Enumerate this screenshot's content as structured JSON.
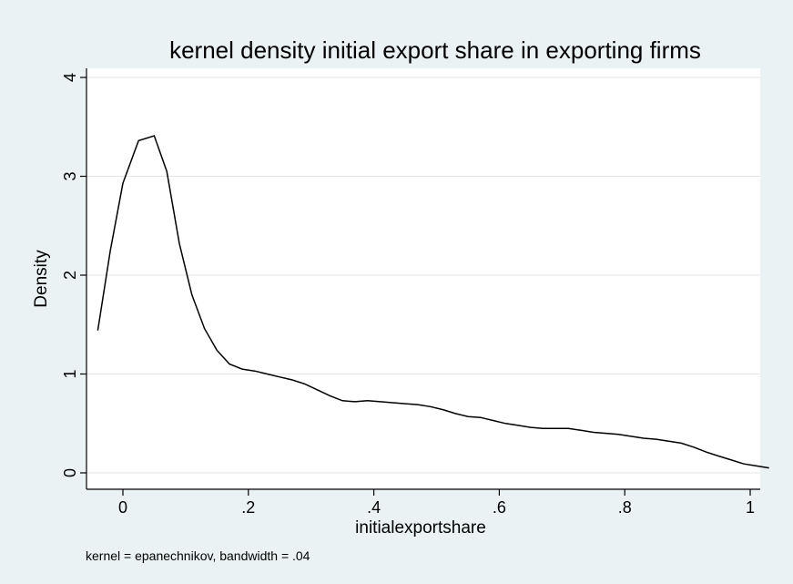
{
  "chart_data": {
    "type": "line",
    "title": "kernel density initial export share in exporting firms",
    "xlabel": "initialexportshare",
    "ylabel": "Density",
    "note": "kernel = epanechnikov, bandwidth = .04",
    "xlim": [
      -0.05,
      1.05
    ],
    "ylim": [
      0,
      4
    ],
    "x_ticks": [
      {
        "value": 0,
        "label": "0"
      },
      {
        "value": 0.2,
        "label": ".2"
      },
      {
        "value": 0.4,
        "label": ".4"
      },
      {
        "value": 0.6,
        "label": ".6"
      },
      {
        "value": 0.8,
        "label": ".8"
      },
      {
        "value": 1,
        "label": "1"
      }
    ],
    "y_ticks": [
      {
        "value": 0,
        "label": "0"
      },
      {
        "value": 1,
        "label": "1"
      },
      {
        "value": 2,
        "label": "2"
      },
      {
        "value": 3,
        "label": "3"
      },
      {
        "value": 4,
        "label": "4"
      }
    ],
    "grid": true,
    "colors": {
      "background": "#eaf2f3",
      "plot": "#ffffff",
      "line": "#000000",
      "grid": "#e0e6e8"
    },
    "series": [
      {
        "x": [
          -0.04,
          -0.02,
          0.0,
          0.025,
          0.05,
          0.07,
          0.09,
          0.11,
          0.13,
          0.15,
          0.17,
          0.19,
          0.21,
          0.23,
          0.25,
          0.27,
          0.29,
          0.31,
          0.33,
          0.35,
          0.37,
          0.39,
          0.41,
          0.43,
          0.45,
          0.47,
          0.49,
          0.51,
          0.53,
          0.55,
          0.57,
          0.59,
          0.61,
          0.63,
          0.65,
          0.67,
          0.69,
          0.71,
          0.73,
          0.75,
          0.77,
          0.79,
          0.81,
          0.83,
          0.85,
          0.87,
          0.89,
          0.91,
          0.93,
          0.95,
          0.97,
          0.99,
          1.01,
          1.03
        ],
        "y": [
          1.44,
          2.25,
          2.93,
          3.36,
          3.41,
          3.05,
          2.32,
          1.8,
          1.46,
          1.24,
          1.1,
          1.05,
          1.03,
          1.0,
          0.97,
          0.94,
          0.9,
          0.84,
          0.78,
          0.73,
          0.72,
          0.73,
          0.72,
          0.71,
          0.7,
          0.69,
          0.67,
          0.64,
          0.6,
          0.57,
          0.56,
          0.53,
          0.5,
          0.48,
          0.46,
          0.45,
          0.45,
          0.45,
          0.43,
          0.41,
          0.4,
          0.39,
          0.37,
          0.35,
          0.34,
          0.32,
          0.3,
          0.26,
          0.21,
          0.17,
          0.13,
          0.09,
          0.07,
          0.05
        ]
      }
    ]
  }
}
